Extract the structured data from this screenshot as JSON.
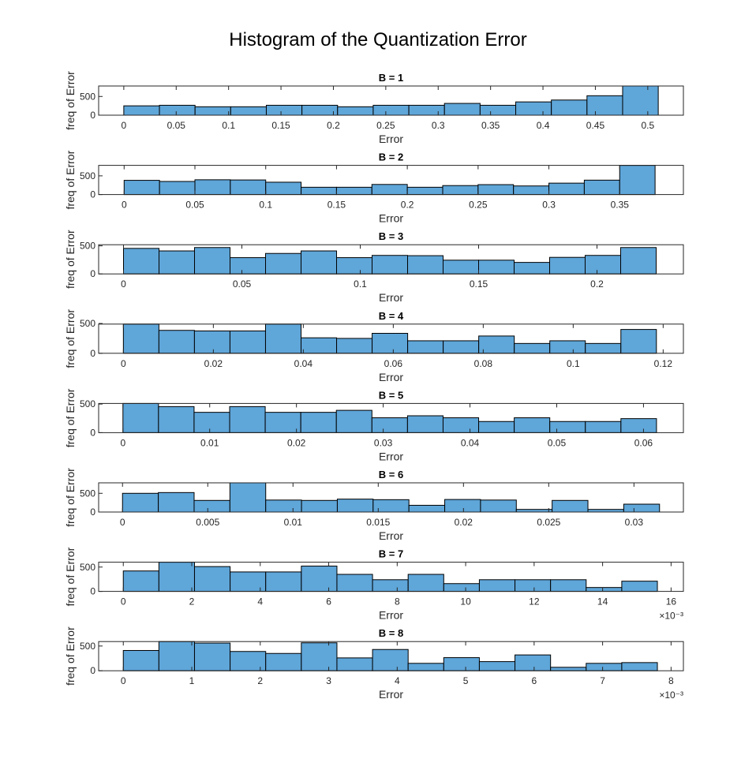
{
  "figure": {
    "title": "Histogram of the Quantization Error"
  },
  "chart_data": [
    {
      "type": "bar",
      "title": "B =  1",
      "xlabel": "Error",
      "ylabel": "freq of Error",
      "bin_start": 0,
      "bin_width": 0.034,
      "xlim": [
        -0.024,
        0.534
      ],
      "xticks": [
        0,
        0.05,
        0.1,
        0.15,
        0.2,
        0.25,
        0.3,
        0.35,
        0.4,
        0.45,
        0.5
      ],
      "xtick_labels": [
        "0",
        "0.05",
        "0.1",
        "0.15",
        "0.2",
        "0.25",
        "0.3",
        "0.35",
        "0.4",
        "0.45",
        "0.5"
      ],
      "exponent_label": "",
      "yticks": [
        0,
        500
      ],
      "ylim": [
        0,
        780
      ],
      "values": [
        250,
        265,
        225,
        225,
        265,
        265,
        225,
        265,
        265,
        315,
        265,
        355,
        405,
        520,
        780
      ]
    },
    {
      "type": "bar",
      "title": "B =  2",
      "xlabel": "Error",
      "ylabel": "freq of Error",
      "bin_start": 0,
      "bin_width": 0.025,
      "xlim": [
        -0.018,
        0.395
      ],
      "xticks": [
        0,
        0.05,
        0.1,
        0.15,
        0.2,
        0.25,
        0.3,
        0.35
      ],
      "xtick_labels": [
        "0",
        "0.05",
        "0.1",
        "0.15",
        "0.2",
        "0.25",
        "0.3",
        "0.35"
      ],
      "exponent_label": "",
      "yticks": [
        0,
        500
      ],
      "ylim": [
        0,
        780
      ],
      "values": [
        380,
        350,
        395,
        390,
        330,
        195,
        195,
        270,
        195,
        240,
        265,
        230,
        305,
        385,
        780
      ]
    },
    {
      "type": "bar",
      "title": "B =  3",
      "xlabel": "Error",
      "ylabel": "freq of Error",
      "bin_start": 0,
      "bin_width": 0.015,
      "xlim": [
        -0.0105,
        0.2365
      ],
      "xticks": [
        0,
        0.05,
        0.1,
        0.15,
        0.2
      ],
      "xtick_labels": [
        "0",
        "0.05",
        "0.1",
        "0.15",
        "0.2"
      ],
      "exponent_label": "",
      "yticks": [
        0,
        500
      ],
      "ylim": [
        0,
        520
      ],
      "values": [
        455,
        410,
        470,
        290,
        365,
        410,
        290,
        330,
        325,
        245,
        245,
        205,
        295,
        330,
        470
      ]
    },
    {
      "type": "bar",
      "title": "B =  4",
      "xlabel": "Error",
      "ylabel": "freq of Error",
      "bin_start": 0,
      "bin_width": 0.0079,
      "xlim": [
        -0.0055,
        0.1245
      ],
      "xticks": [
        0,
        0.02,
        0.04,
        0.06,
        0.08,
        0.1,
        0.12
      ],
      "xtick_labels": [
        "0",
        "0.02",
        "0.04",
        "0.06",
        "0.08",
        "0.1",
        "0.12"
      ],
      "exponent_label": "",
      "yticks": [
        0,
        500
      ],
      "ylim": [
        0,
        490
      ],
      "values": [
        490,
        385,
        375,
        375,
        490,
        260,
        250,
        335,
        210,
        210,
        290,
        165,
        210,
        165,
        400
      ]
    },
    {
      "type": "bar",
      "title": "B =  5",
      "xlabel": "Error",
      "ylabel": "freq of Error",
      "bin_start": 0,
      "bin_width": 0.0041,
      "xlim": [
        -0.0028,
        0.0646
      ],
      "xticks": [
        0,
        0.01,
        0.02,
        0.03,
        0.04,
        0.05,
        0.06
      ],
      "xtick_labels": [
        "0",
        "0.01",
        "0.02",
        "0.03",
        "0.04",
        "0.05",
        "0.06"
      ],
      "exponent_label": "",
      "yticks": [
        0,
        500
      ],
      "ylim": [
        0,
        510
      ],
      "values": [
        510,
        455,
        355,
        455,
        355,
        355,
        390,
        260,
        295,
        260,
        195,
        260,
        195,
        195,
        245
      ]
    },
    {
      "type": "bar",
      "title": "B =  6",
      "xlabel": "Error",
      "ylabel": "freq of Error",
      "bin_start": 0,
      "bin_width": 0.0021,
      "xlim": [
        -0.0014,
        0.0329
      ],
      "xticks": [
        0,
        0.005,
        0.01,
        0.015,
        0.02,
        0.025,
        0.03
      ],
      "xtick_labels": [
        "0",
        "0.005",
        "0.01",
        "0.015",
        "0.02",
        "0.025",
        "0.03"
      ],
      "exponent_label": "",
      "yticks": [
        0,
        500
      ],
      "ylim": [
        0,
        780
      ],
      "values": [
        500,
        520,
        310,
        780,
        320,
        310,
        345,
        330,
        180,
        335,
        320,
        70,
        310,
        70,
        210
      ]
    },
    {
      "type": "bar",
      "title": "B =  7",
      "xlabel": "Error",
      "ylabel": "freq of Error",
      "bin_start": 0,
      "bin_width": 0.00104,
      "xlim": [
        -0.00072,
        0.01636
      ],
      "xticks": [
        0,
        0.002,
        0.004,
        0.006,
        0.008,
        0.01,
        0.012,
        0.014,
        0.016
      ],
      "xtick_labels": [
        "0",
        "2",
        "4",
        "6",
        "8",
        "10",
        "12",
        "14",
        "16"
      ],
      "exponent_label": "×10⁻³",
      "yticks": [
        0,
        500
      ],
      "ylim": [
        0,
        600
      ],
      "values": [
        420,
        600,
        510,
        400,
        400,
        520,
        350,
        240,
        350,
        160,
        240,
        240,
        240,
        80,
        210
      ]
    },
    {
      "type": "bar",
      "title": "B =  8",
      "xlabel": "Error",
      "ylabel": "freq of Error",
      "bin_start": 0,
      "bin_width": 0.00052,
      "xlim": [
        -0.00036,
        0.00818
      ],
      "xticks": [
        0,
        0.001,
        0.002,
        0.003,
        0.004,
        0.005,
        0.006,
        0.007,
        0.008
      ],
      "xtick_labels": [
        "0",
        "1",
        "2",
        "3",
        "4",
        "5",
        "6",
        "7",
        "8"
      ],
      "exponent_label": "×10⁻³",
      "yticks": [
        0,
        500
      ],
      "ylim": [
        0,
        590
      ],
      "values": [
        410,
        590,
        560,
        390,
        350,
        565,
        260,
        430,
        150,
        265,
        185,
        320,
        70,
        150,
        165
      ]
    }
  ]
}
